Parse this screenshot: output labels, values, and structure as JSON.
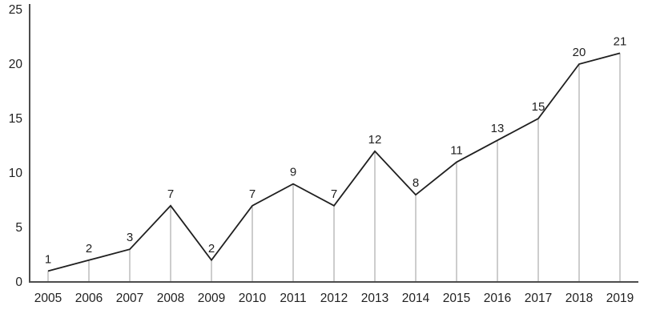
{
  "chart_data": {
    "type": "line",
    "title": "",
    "xlabel": "",
    "ylabel": "",
    "categories": [
      "2005",
      "2006",
      "2007",
      "2008",
      "2009",
      "2010",
      "2011",
      "2012",
      "2013",
      "2014",
      "2015",
      "2016",
      "2017",
      "2018",
      "2019"
    ],
    "values": [
      1,
      2,
      3,
      7,
      2,
      7,
      9,
      7,
      12,
      8,
      11,
      13,
      15,
      20,
      21
    ],
    "ylim": [
      0,
      25
    ],
    "yticks": [
      0,
      5,
      10,
      15,
      20,
      25
    ],
    "grid": false,
    "legend": false,
    "drop_lines": true,
    "data_labels": true,
    "colors": {
      "series_line": "#1f1f1f",
      "axis": "#4d4d4d",
      "drop_line": "#9b9b9b",
      "text": "#1f1f1f"
    }
  }
}
